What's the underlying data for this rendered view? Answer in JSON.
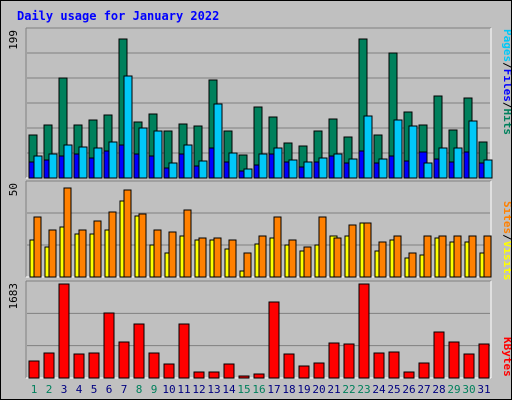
{
  "colors": {
    "background": "#c0c0c0",
    "title": "#0000ff",
    "hits": "#00805c",
    "files": "#0000ff",
    "pages": "#00c8f8",
    "visits": "#ffff00",
    "sites": "#ff8000",
    "kbytes": "#ff0000",
    "weekend_label": "#00805c",
    "weekday_label": "#000080"
  },
  "chart_data": {
    "type": "bar",
    "title": "Daily usage for January 2022",
    "categories": [
      "1",
      "2",
      "3",
      "4",
      "5",
      "6",
      "7",
      "8",
      "9",
      "10",
      "11",
      "12",
      "13",
      "14",
      "15",
      "16",
      "17",
      "18",
      "19",
      "20",
      "21",
      "22",
      "23",
      "24",
      "25",
      "26",
      "27",
      "28",
      "29",
      "30",
      "31"
    ],
    "weekend_days": [
      "1",
      "2",
      "8",
      "9",
      "15",
      "16",
      "22",
      "23",
      "29",
      "30"
    ],
    "panels": [
      {
        "max_label": "199",
        "ylim": [
          0,
          199
        ],
        "legend": [
          "Pages",
          "Files",
          "Hits"
        ],
        "series": [
          {
            "name": "Hits",
            "color_key": "hits",
            "values": [
              58,
              72,
              135,
              72,
              78,
              85,
              188,
              76,
              87,
              64,
              73,
              70,
              133,
              64,
              31,
              96,
              83,
              48,
              43,
              64,
              80,
              56,
              188,
              58,
              169,
              90,
              72,
              111,
              65,
              108,
              49
            ]
          },
          {
            "name": "Files",
            "color_key": "files",
            "values": [
              22,
              25,
              30,
              32,
              27,
              36,
              45,
              32,
              30,
              14,
              32,
              16,
              40,
              22,
              10,
              18,
              32,
              22,
              15,
              21,
              30,
              20,
              37,
              20,
              30,
              23,
              35,
              26,
              22,
              35,
              20
            ]
          },
          {
            "name": "Pages",
            "color_key": "pages",
            "values": [
              30,
              33,
              44,
              42,
              40,
              49,
              138,
              68,
              63,
              20,
              44,
              23,
              100,
              34,
              12,
              33,
              41,
              25,
              22,
              27,
              33,
              26,
              84,
              26,
              78,
              70,
              20,
              40,
              40,
              77,
              24
            ]
          }
        ]
      },
      {
        "max_label": "50",
        "ylim": [
          0,
          50
        ],
        "legend": [
          "Sites",
          "/",
          "Visits"
        ],
        "series": [
          {
            "name": "Visits",
            "color_key": "visits",
            "values": [
              20,
              16,
              27,
              23,
              23,
              25,
              41,
              33,
              17,
              13,
              22,
              20,
              20,
              15,
              3,
              18,
              21,
              17,
              14,
              17,
              22,
              22,
              29,
              14,
              20,
              10,
              12,
              21,
              19,
              19,
              13
            ]
          },
          {
            "name": "Sites",
            "color_key": "sites",
            "values": [
              32,
              25,
              48,
              25,
              30,
              35,
              47,
              34,
              25,
              24,
              36,
              21,
              21,
              20,
              13,
              22,
              32,
              20,
              16,
              32,
              21,
              28,
              29,
              19,
              22,
              13,
              22,
              22,
              22,
              22,
              22
            ]
          }
        ]
      },
      {
        "max_label": "1683",
        "ylim": [
          0,
          1683
        ],
        "legend": [
          "KBytes"
        ],
        "series": [
          {
            "name": "KBytes",
            "color_key": "kbytes",
            "values": [
              300,
              450,
              1683,
              430,
              440,
              1170,
              640,
              970,
              450,
              250,
              970,
              100,
              110,
              250,
              40,
              80,
              1360,
              430,
              220,
              270,
              630,
              600,
              1683,
              450,
              460,
              100,
              260,
              830,
              640,
              430,
              610
            ]
          }
        ]
      }
    ]
  }
}
